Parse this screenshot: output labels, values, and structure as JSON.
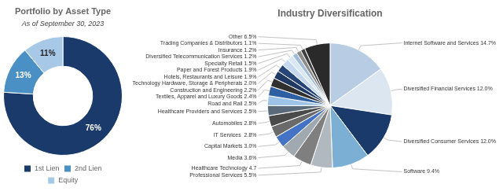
{
  "chart_data": [
    {
      "type": "doughnut",
      "title": "Portfolio by Asset Type",
      "subtitle": "As of September 30, 2023",
      "categories": [
        "1st Lien",
        "2nd Lien",
        "Equity"
      ],
      "values": [
        76,
        13,
        11
      ],
      "value_labels": [
        "76%",
        "13%",
        "11%"
      ],
      "colors": [
        "#1a3a6b",
        "#4a90c4",
        "#a8c8e8"
      ],
      "data_labels": true,
      "legend": "bottom"
    },
    {
      "type": "pie",
      "title": "Industry Diversification",
      "categories": [
        "Internet Software and Services 14.7%",
        "Diversified Financial Services 12.0%",
        "Diversified Consumer Services 12.0%",
        "Software 9.4%",
        "Professional Services 5.5%",
        "Healthcare Technology 4.7",
        "Media 3.6%",
        "Capital Markets 3.0%",
        "IT Services  2.8%",
        "Automobiles 2.8%",
        "Healthcare Providers and Services 2.5%",
        "Road and Rail 2.5%",
        "Textiles, Apparel and Luxury Goods 2.4%",
        "Construction and Engineering 2.2%",
        "Technology Hardware, Storage & Peripherals 2.0%",
        "Hotels, Restaurants and Leisure 1.9%",
        "Paper and Forest Products 1.9%",
        "Specialty Retail 1.5%",
        "Diversified Telecommunication Services 1.2%",
        "Insurance 1.2%",
        "Trading Companies & Distributors 1.1%",
        "Other 6.5%"
      ],
      "values": [
        14.7,
        12.0,
        12.0,
        9.4,
        5.5,
        4.7,
        3.6,
        3.0,
        2.8,
        2.8,
        2.5,
        2.5,
        2.4,
        2.2,
        2.0,
        1.9,
        1.9,
        1.5,
        1.2,
        1.2,
        1.1,
        6.5
      ],
      "colors": [
        "#b8cce4",
        "#dce6f1",
        "#1a3a6b",
        "#7bafd4",
        "#b0b8c0",
        "#7f7f7f",
        "#a0a8b0",
        "#4472c4",
        "#6a6a6a",
        "#4a4a4a",
        "#5a6a7a",
        "#9dc3e6",
        "#2e5fa3",
        "#303030",
        "#203864",
        "#264478",
        "#c5d8ed",
        "#d9e8f5",
        "#a0bcd8",
        "#8c8c8c",
        "#404040",
        "#2a2a2a"
      ]
    }
  ]
}
